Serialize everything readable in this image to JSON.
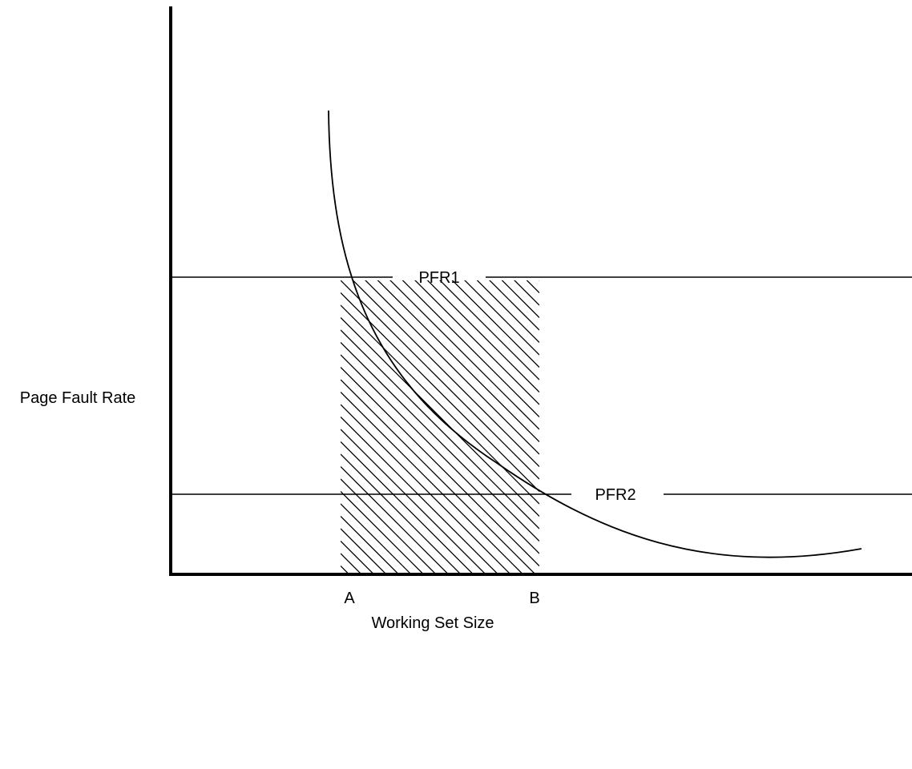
{
  "diagram": {
    "y_axis_label": "Page Fault Rate",
    "x_axis_label": "Working Set Size",
    "thresholds": [
      {
        "label": "PFR1"
      },
      {
        "label": "PFR2"
      }
    ],
    "x_markers": [
      {
        "label": "A"
      },
      {
        "label": "B"
      }
    ],
    "colors": {
      "ink": "#000000",
      "background": "#ffffff"
    }
  }
}
